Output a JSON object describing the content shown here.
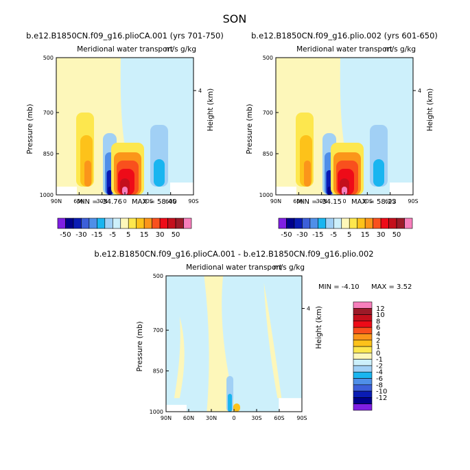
{
  "title": "SON",
  "colors": {
    "neg": [
      "#7f1fe3",
      "#00008b",
      "#0a1cb4",
      "#3c5fd9",
      "#4f8fe8",
      "#19b5f0",
      "#a1d0f5",
      "#cdf0fb"
    ],
    "pos": [
      "#fdf7ba",
      "#fde74e",
      "#fdc21a",
      "#fb951a",
      "#f9501d",
      "#ee0b18",
      "#c40f1c",
      "#9c1a28",
      "#f77fbc"
    ]
  },
  "chart_data": [
    {
      "type": "contour",
      "title": "b.e12.B1850CN.f09_g16.plioCA.001 (yrs 701-750)",
      "subtitle": "Meridional water transport",
      "units": "m/s g/kg",
      "ylabel": "Pressure (mb)",
      "right_label": "Height (km)",
      "right_tick": "4",
      "x_ticks": [
        "90N",
        "60N",
        "30N",
        "0",
        "30S",
        "60S",
        "90S"
      ],
      "y_ticks": [
        "500",
        "700",
        "850",
        "1000"
      ],
      "min_label": "MIN = -34.76",
      "max_label": "MAX = 58.40",
      "field_min": -34.76,
      "field_max": 58.4,
      "colorbar_labels": [
        "-50",
        "-30",
        "-15",
        "-5",
        "5",
        "15",
        "30",
        "50"
      ]
    },
    {
      "type": "contour",
      "title": "b.e12.B1850CN.f09_g16.plio.002 (yrs 601-650)",
      "subtitle": "Meridional water transport",
      "units": "m/s g/kg",
      "ylabel": "Pressure (mb)",
      "right_label": "Height (km)",
      "right_tick": "4",
      "x_ticks": [
        "90N",
        "60N",
        "30N",
        "0",
        "30S",
        "60S",
        "90S"
      ],
      "y_ticks": [
        "500",
        "700",
        "850",
        "1000"
      ],
      "min_label": "MIN = -34.15",
      "max_label": "MAX = 58.23",
      "field_min": -34.15,
      "field_max": 58.23,
      "colorbar_labels": [
        "-50",
        "-30",
        "-15",
        "-5",
        "5",
        "15",
        "30",
        "50"
      ]
    },
    {
      "type": "contour",
      "title": "b.e12.B1850CN.f09_g16.plioCA.001 - b.e12.B1850CN.f09_g16.plio.002",
      "subtitle": "Meridional water transport",
      "units": "m/s g/kg",
      "ylabel": "Pressure (mb)",
      "right_label": "Height (km)",
      "right_tick": "4",
      "x_ticks": [
        "90N",
        "60N",
        "30N",
        "0",
        "30S",
        "60S",
        "90S"
      ],
      "y_ticks": [
        "500",
        "700",
        "850",
        "1000"
      ],
      "min_label": "MIN = -4.10",
      "max_label": "MAX = 3.52",
      "field_min": -4.1,
      "field_max": 3.52,
      "colorbar_labels": [
        "12",
        "10",
        "8",
        "6",
        "4",
        "2",
        "1",
        "0",
        "-1",
        "-2",
        "-4",
        "-6",
        "-8",
        "-10",
        "-12"
      ]
    }
  ]
}
